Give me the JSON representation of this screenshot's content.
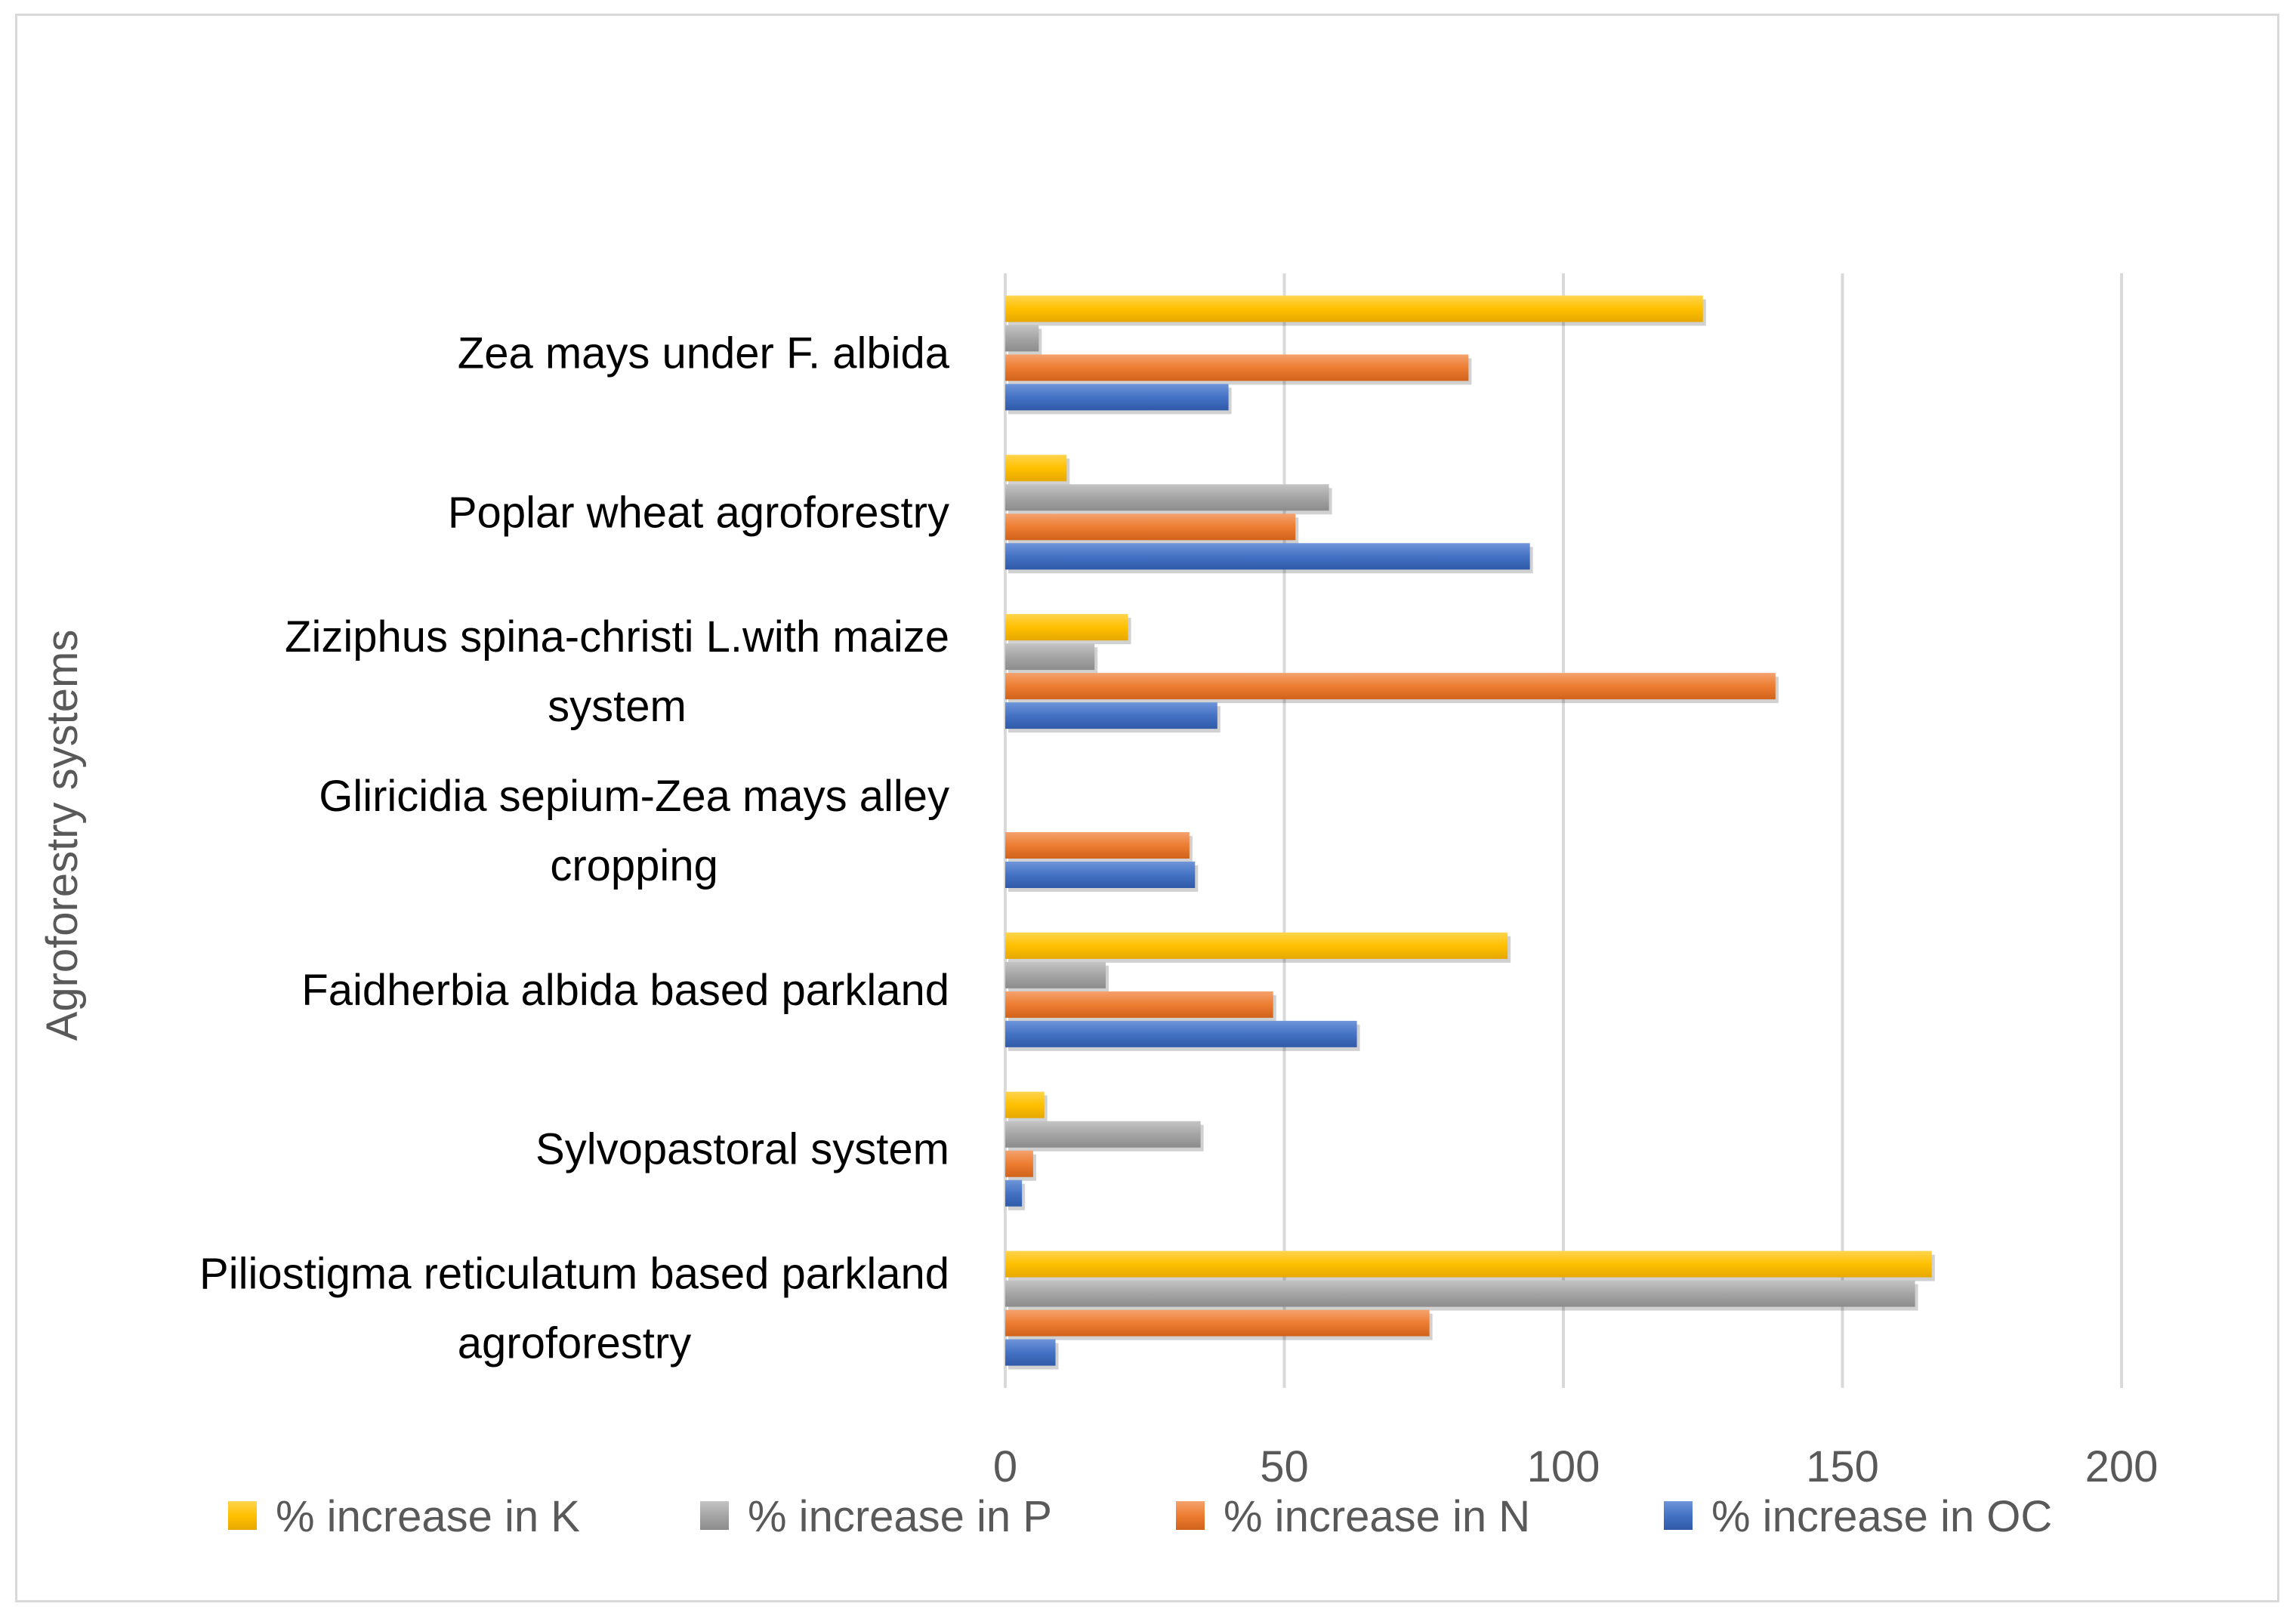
{
  "chart_data": {
    "type": "bar",
    "orientation": "horizontal",
    "title": "",
    "xlabel": "",
    "ylabel": "Agroforestry systems",
    "xlim": [
      0,
      200
    ],
    "xticks": [
      0,
      50,
      100,
      150,
      200
    ],
    "grid": true,
    "legend_position": "bottom",
    "categories": [
      "Zea mays under F. albida",
      "Poplar wheat agroforestry",
      "Ziziphus spina-christi L.with maize system",
      "Gliricidia sepium-Zea mays alley cropping",
      "Faidherbia albida  based parkland",
      "Sylvopastoral system",
      "Piliostigma reticulatum based parkland agroforestry"
    ],
    "category_lines": [
      [
        "Zea mays under F. albida"
      ],
      [
        "Poplar wheat agroforestry"
      ],
      [
        "Ziziphus spina-christi L.with maize",
        "system"
      ],
      [
        "Gliricidia sepium-Zea mays alley",
        "cropping"
      ],
      [
        "Faidherbia albida  based parkland"
      ],
      [
        "Sylvopastoral system"
      ],
      [
        "Piliostigma reticulatum based parkland",
        "agroforestry"
      ]
    ],
    "series": [
      {
        "name": "% increase in K",
        "color": "#FFC000",
        "values": [
          125,
          11,
          22,
          null,
          90,
          7,
          166
        ]
      },
      {
        "name": "% increase in P",
        "color": "#A5A5A5",
        "values": [
          6,
          58,
          16,
          null,
          18,
          35,
          163
        ]
      },
      {
        "name": "% increase in N",
        "color": "#ED7D31",
        "values": [
          83,
          52,
          138,
          33,
          48,
          5,
          76
        ]
      },
      {
        "name": "% increase in OC",
        "color": "#4472C4",
        "values": [
          40,
          94,
          38,
          34,
          63,
          3,
          9
        ]
      }
    ]
  }
}
